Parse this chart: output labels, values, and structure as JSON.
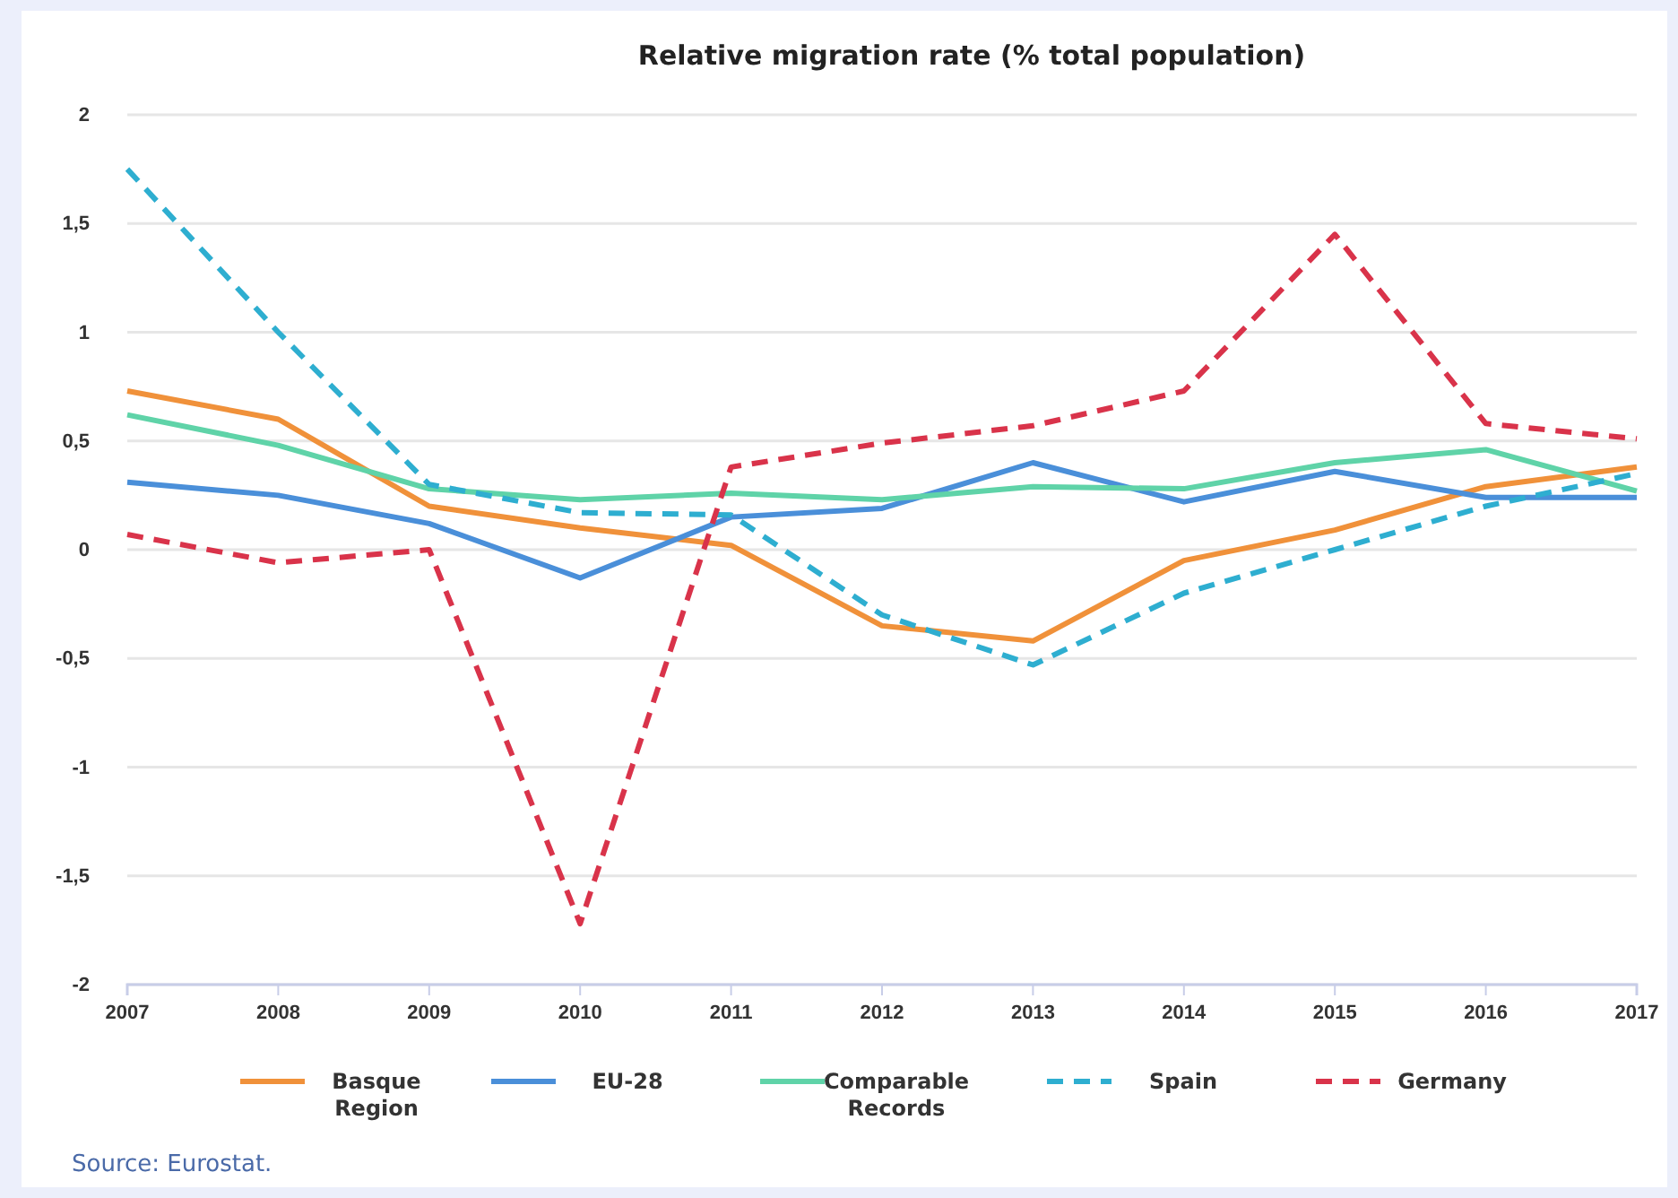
{
  "chart_data": {
    "type": "line",
    "title": "Relative migration rate (% total population)",
    "x": [
      2007,
      2008,
      2009,
      2010,
      2011,
      2012,
      2013,
      2014,
      2015,
      2016,
      2017
    ],
    "xlim": [
      2007,
      2017
    ],
    "xticks": [
      2007,
      2008,
      2009,
      2010,
      2011,
      2012,
      2013,
      2014,
      2015,
      2016,
      2017
    ],
    "ylim": [
      -2,
      2
    ],
    "yticks": [
      {
        "value": -2,
        "label": "-2"
      },
      {
        "value": -1.5,
        "label": "-1,5"
      },
      {
        "value": -1,
        "label": "-1"
      },
      {
        "value": -0.5,
        "label": "-0,5"
      },
      {
        "value": 0,
        "label": "0"
      },
      {
        "value": 0.5,
        "label": "0,5"
      },
      {
        "value": 1,
        "label": "1"
      },
      {
        "value": 1.5,
        "label": "1,5"
      },
      {
        "value": 2,
        "label": "2"
      }
    ],
    "grid": "y",
    "legend": "bottom",
    "marker": "none",
    "series": [
      {
        "name": "Basque Region",
        "color": "#f0913a",
        "line_style": "solid",
        "values": [
          0.73,
          0.6,
          0.2,
          0.1,
          0.02,
          -0.35,
          -0.42,
          -0.05,
          0.09,
          0.29,
          0.38
        ]
      },
      {
        "name": "EU-28",
        "color": "#4a8fd9",
        "line_style": "solid",
        "values": [
          0.31,
          0.25,
          0.12,
          -0.13,
          0.15,
          0.19,
          0.4,
          0.22,
          0.36,
          0.24,
          0.24
        ]
      },
      {
        "name": "Comparable Records",
        "color": "#5fd3a8",
        "line_style": "solid",
        "values": [
          0.62,
          0.48,
          0.28,
          0.23,
          0.26,
          0.23,
          0.29,
          0.28,
          0.4,
          0.46,
          0.27
        ]
      },
      {
        "name": "Spain",
        "color": "#2eaed0",
        "line_style": "dashed",
        "values": [
          1.75,
          1.0,
          0.3,
          0.17,
          0.16,
          -0.3,
          -0.53,
          -0.2,
          0.0,
          0.2,
          0.35
        ]
      },
      {
        "name": "Germany",
        "color": "#d9334a",
        "line_style": "dashed",
        "values": [
          0.07,
          -0.06,
          0.0,
          -1.72,
          0.38,
          0.49,
          0.57,
          0.73,
          1.45,
          0.58,
          0.51
        ]
      }
    ],
    "annotations": [
      "Source: Eurostat."
    ]
  }
}
